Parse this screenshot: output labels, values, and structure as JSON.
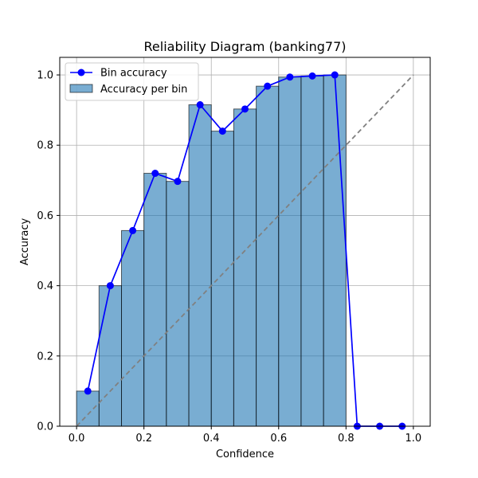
{
  "chart_data": {
    "type": "bar",
    "title": "Reliability Diagram (banking77)",
    "xlabel": "Confidence",
    "ylabel": "Accuracy",
    "xlim": [
      -0.05,
      1.05
    ],
    "ylim": [
      0,
      1.05
    ],
    "xticks": [
      0.0,
      0.2,
      0.4,
      0.6,
      0.8,
      1.0
    ],
    "yticks": [
      0.0,
      0.2,
      0.4,
      0.6,
      0.8,
      1.0
    ],
    "xtick_labels": [
      "0.0",
      "0.2",
      "0.4",
      "0.6",
      "0.8",
      "1.0"
    ],
    "ytick_labels": [
      "0.0",
      "0.2",
      "0.4",
      "0.6",
      "0.8",
      "1.0"
    ],
    "grid": true,
    "legend_position": "top-left",
    "bin_width": 0.0667,
    "bin_centers": [
      0.0333,
      0.1,
      0.1667,
      0.2333,
      0.3,
      0.3667,
      0.4333,
      0.5,
      0.5667,
      0.6333,
      0.7,
      0.7667,
      0.8333,
      0.9,
      0.9667
    ],
    "series": [
      {
        "name": "Accuracy per bin",
        "kind": "bar",
        "color": "#1f77b4",
        "values": [
          0.1,
          0.4,
          0.557,
          0.72,
          0.697,
          0.915,
          0.84,
          0.903,
          0.968,
          0.994,
          0.997,
          1.0,
          0,
          0,
          0
        ]
      },
      {
        "name": "Bin accuracy",
        "kind": "line",
        "color": "#0000ff",
        "values": [
          0.1,
          0.4,
          0.557,
          0.72,
          0.697,
          0.915,
          0.84,
          0.903,
          0.968,
          0.994,
          0.997,
          1.0,
          0,
          0,
          0
        ]
      }
    ],
    "reference_line": {
      "x": [
        0,
        1
      ],
      "y": [
        0,
        1
      ],
      "color": "#808080"
    }
  }
}
